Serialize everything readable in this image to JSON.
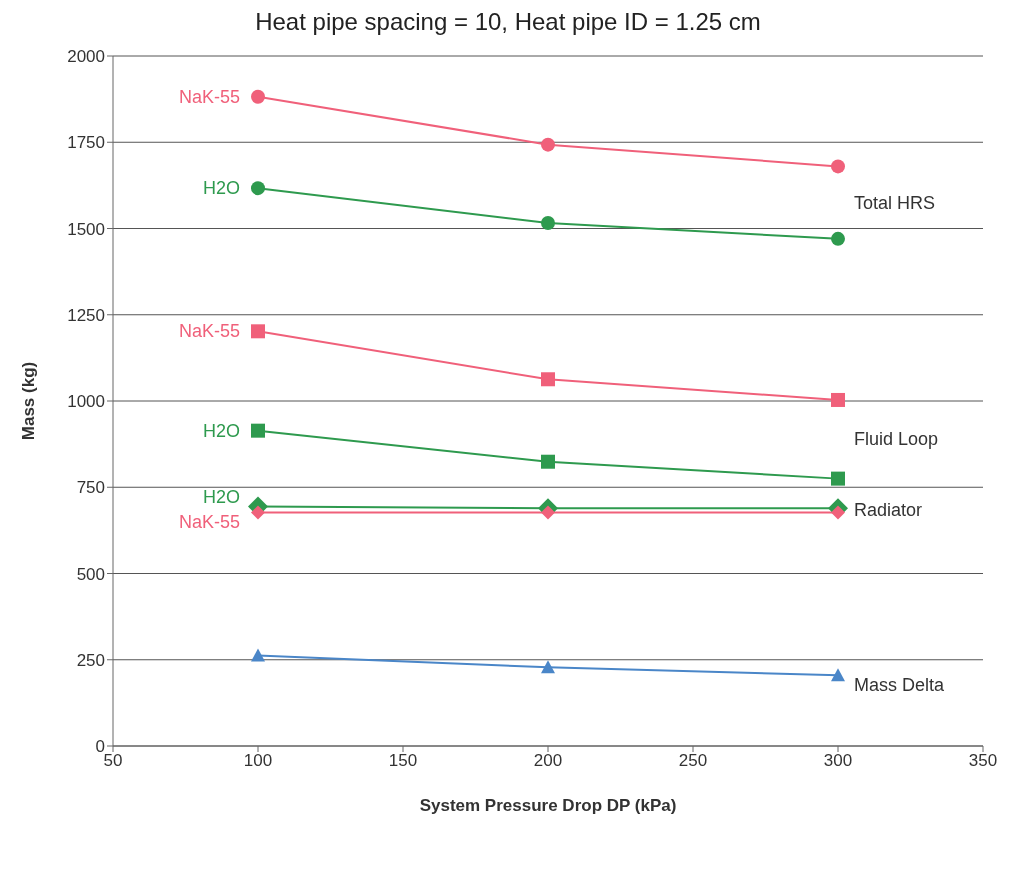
{
  "chart_data": {
    "type": "line",
    "title": "Heat pipe spacing = 10, Heat pipe ID = 1.25 cm",
    "xlabel": "System Pressure Drop DP (kPa)",
    "ylabel": "Mass (kg)",
    "x": [
      100,
      200,
      300
    ],
    "series": [
      {
        "name": "NaK-55",
        "color": "#f0607a",
        "marker": "circle",
        "values": [
          1882,
          1743,
          1680
        ]
      },
      {
        "name": "H2O",
        "color": "#2e9a4e",
        "marker": "circle",
        "values": [
          1617,
          1516,
          1470
        ]
      },
      {
        "name": "NaK-55",
        "color": "#f0607a",
        "marker": "square",
        "values": [
          1202,
          1063,
          1003
        ]
      },
      {
        "name": "H2O",
        "color": "#2e9a4e",
        "marker": "square",
        "values": [
          914,
          824,
          775
        ]
      },
      {
        "name": "H2O",
        "color": "#2e9a4e",
        "marker": "diamond",
        "values": [
          694,
          689,
          689
        ]
      },
      {
        "name": "NaK-55",
        "color": "#f0607a",
        "marker": "diamond",
        "values": [
          677,
          677,
          677
        ]
      },
      {
        "color": "#4a86c8",
        "marker": "triangle",
        "values": [
          262,
          228,
          205
        ]
      }
    ],
    "annotations": [
      "Total HRS",
      "Fluid Loop",
      "Radiator",
      "Mass Delta"
    ],
    "xlim": [
      50,
      350
    ],
    "xticks": [
      50,
      100,
      150,
      200,
      250,
      300,
      350
    ],
    "ylim": [
      0,
      2000
    ],
    "yticks": [
      0,
      250,
      500,
      750,
      1000,
      1250,
      1500,
      1750,
      2000
    ],
    "grid": "y",
    "legend": false
  }
}
